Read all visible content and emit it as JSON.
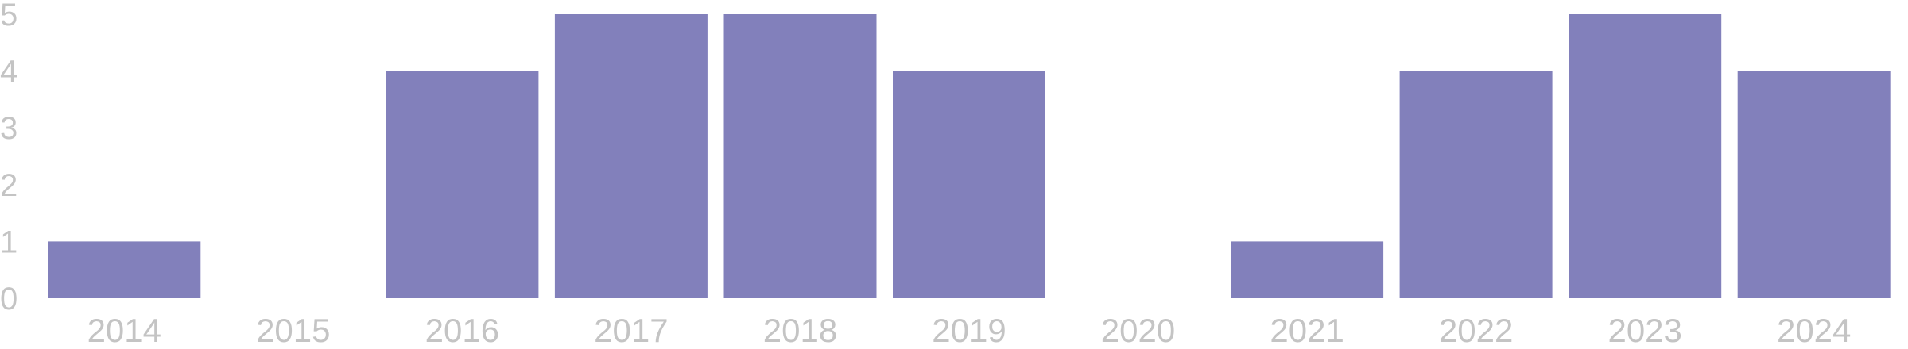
{
  "chart_data": {
    "type": "bar",
    "categories": [
      "2014",
      "2015",
      "2016",
      "2017",
      "2018",
      "2019",
      "2020",
      "2021",
      "2022",
      "2023",
      "2024"
    ],
    "values": [
      1,
      0,
      4,
      5,
      5,
      4,
      0,
      1,
      4,
      5,
      4
    ],
    "ylim": [
      0,
      5
    ],
    "yticks": [
      "0",
      "1",
      "2",
      "3",
      "4",
      "5"
    ],
    "grid": false,
    "legend": "none",
    "colors": {
      "bar": "#8280bb",
      "tick_label": "#c4c4c4"
    }
  }
}
